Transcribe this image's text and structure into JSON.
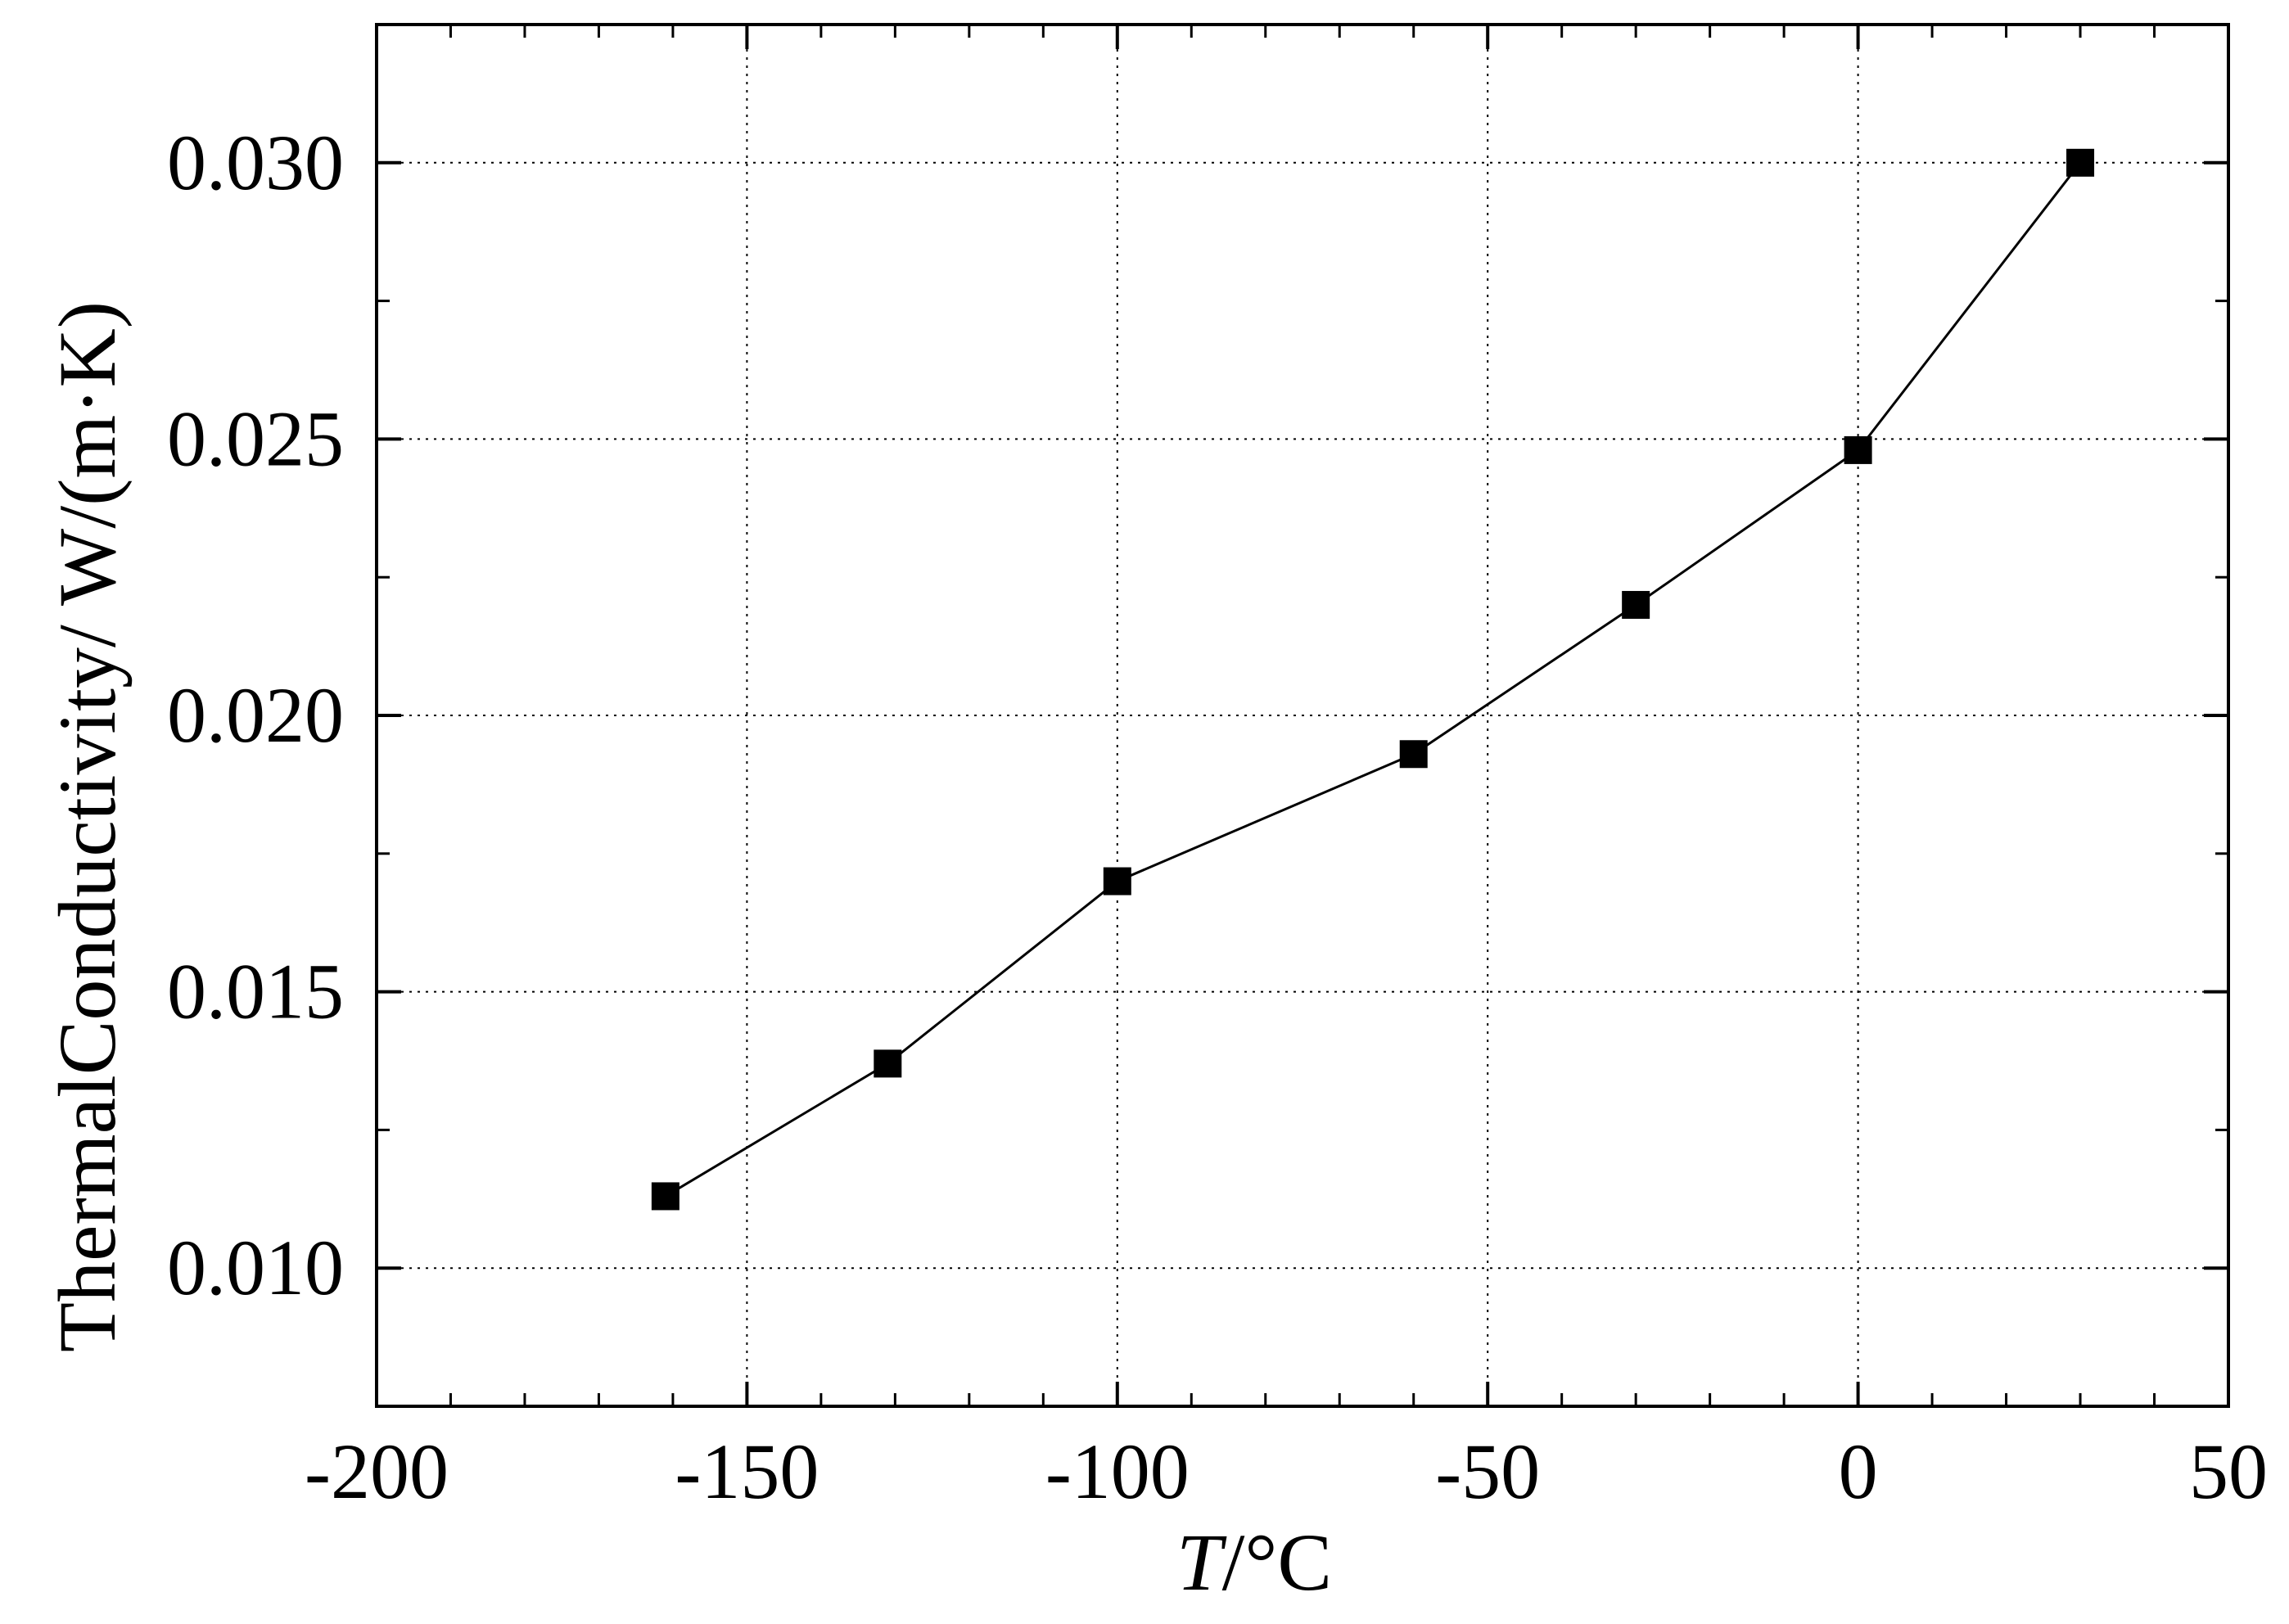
{
  "chart_data": {
    "type": "line",
    "title": "",
    "xlabel_italic": "T",
    "xlabel_rest": "/°C",
    "ylabel": "ThermalConductivity/ W/(m·K)",
    "xlim": [
      -200,
      50
    ],
    "ylim": [
      0.0075,
      0.0325
    ],
    "x_major_ticks": [
      -200,
      -150,
      -100,
      -50,
      0,
      50
    ],
    "x_minor_step": 10,
    "y_major_ticks": [
      0.01,
      0.015,
      0.02,
      0.025,
      0.03
    ],
    "y_minor_step": 0.0025,
    "x_tick_labels": [
      "-200",
      "-150",
      "-100",
      "-50",
      "0",
      "50"
    ],
    "y_tick_labels": [
      "0.010",
      "0.015",
      "0.020",
      "0.025",
      "0.030"
    ],
    "grid": true,
    "grid_style": "dotted",
    "marker": "filled-square",
    "line_color": "#000000",
    "series": [
      {
        "x": [
          -161,
          -131,
          -100,
          -60,
          -30,
          0,
          30
        ],
        "y": [
          0.0113,
          0.0137,
          0.017,
          0.0193,
          0.022,
          0.0248,
          0.03
        ]
      }
    ]
  }
}
